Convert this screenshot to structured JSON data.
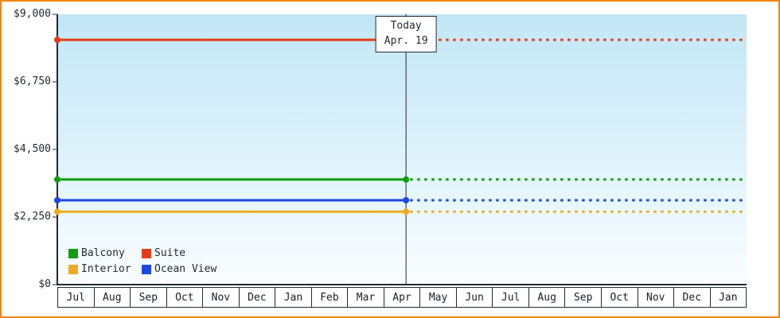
{
  "colors": {
    "frame_border": "#ee8611",
    "axis": "#222a33",
    "plot_gradient": [
      "#c2e6f6",
      "#e9f7fd",
      "#fafdff"
    ]
  },
  "chart_data": {
    "type": "line",
    "title": "",
    "xlabel": "",
    "ylabel": "",
    "ylim": [
      0,
      9000
    ],
    "grid": false,
    "legend_position": "bottom-left-inside",
    "x_categories": [
      "Jul",
      "Aug",
      "Sep",
      "Oct",
      "Nov",
      "Dec",
      "Jan",
      "Feb",
      "Mar",
      "Apr",
      "May",
      "Jun",
      "Jul",
      "Aug",
      "Sep",
      "Oct",
      "Nov",
      "Dec",
      "Jan"
    ],
    "y_ticks": [
      0,
      2250,
      4500,
      6750,
      9000
    ],
    "y_tick_labels": [
      "$0",
      "$2,250",
      "$4,500",
      "$6,750",
      "$9,000"
    ],
    "today_marker": {
      "label": "Today",
      "date_label": "Apr. 19",
      "month_index": 9,
      "day": 19
    },
    "series": [
      {
        "name": "Suite",
        "color": "#e53c17",
        "value": 8150,
        "style": "solid-then-dotted"
      },
      {
        "name": "Balcony",
        "color": "#119d11",
        "value": 3500,
        "style": "solid-then-dotted"
      },
      {
        "name": "Ocean View",
        "color": "#1d49e0",
        "value": 2810,
        "style": "solid-then-dotted"
      },
      {
        "name": "Interior",
        "color": "#edaa22",
        "value": 2430,
        "style": "solid-then-dotted"
      }
    ],
    "legend": [
      {
        "label": "Balcony",
        "color": "#119d11"
      },
      {
        "label": "Suite",
        "color": "#e53c17"
      },
      {
        "label": "Interior",
        "color": "#edaa22"
      },
      {
        "label": "Ocean View",
        "color": "#1d49e0"
      }
    ]
  }
}
